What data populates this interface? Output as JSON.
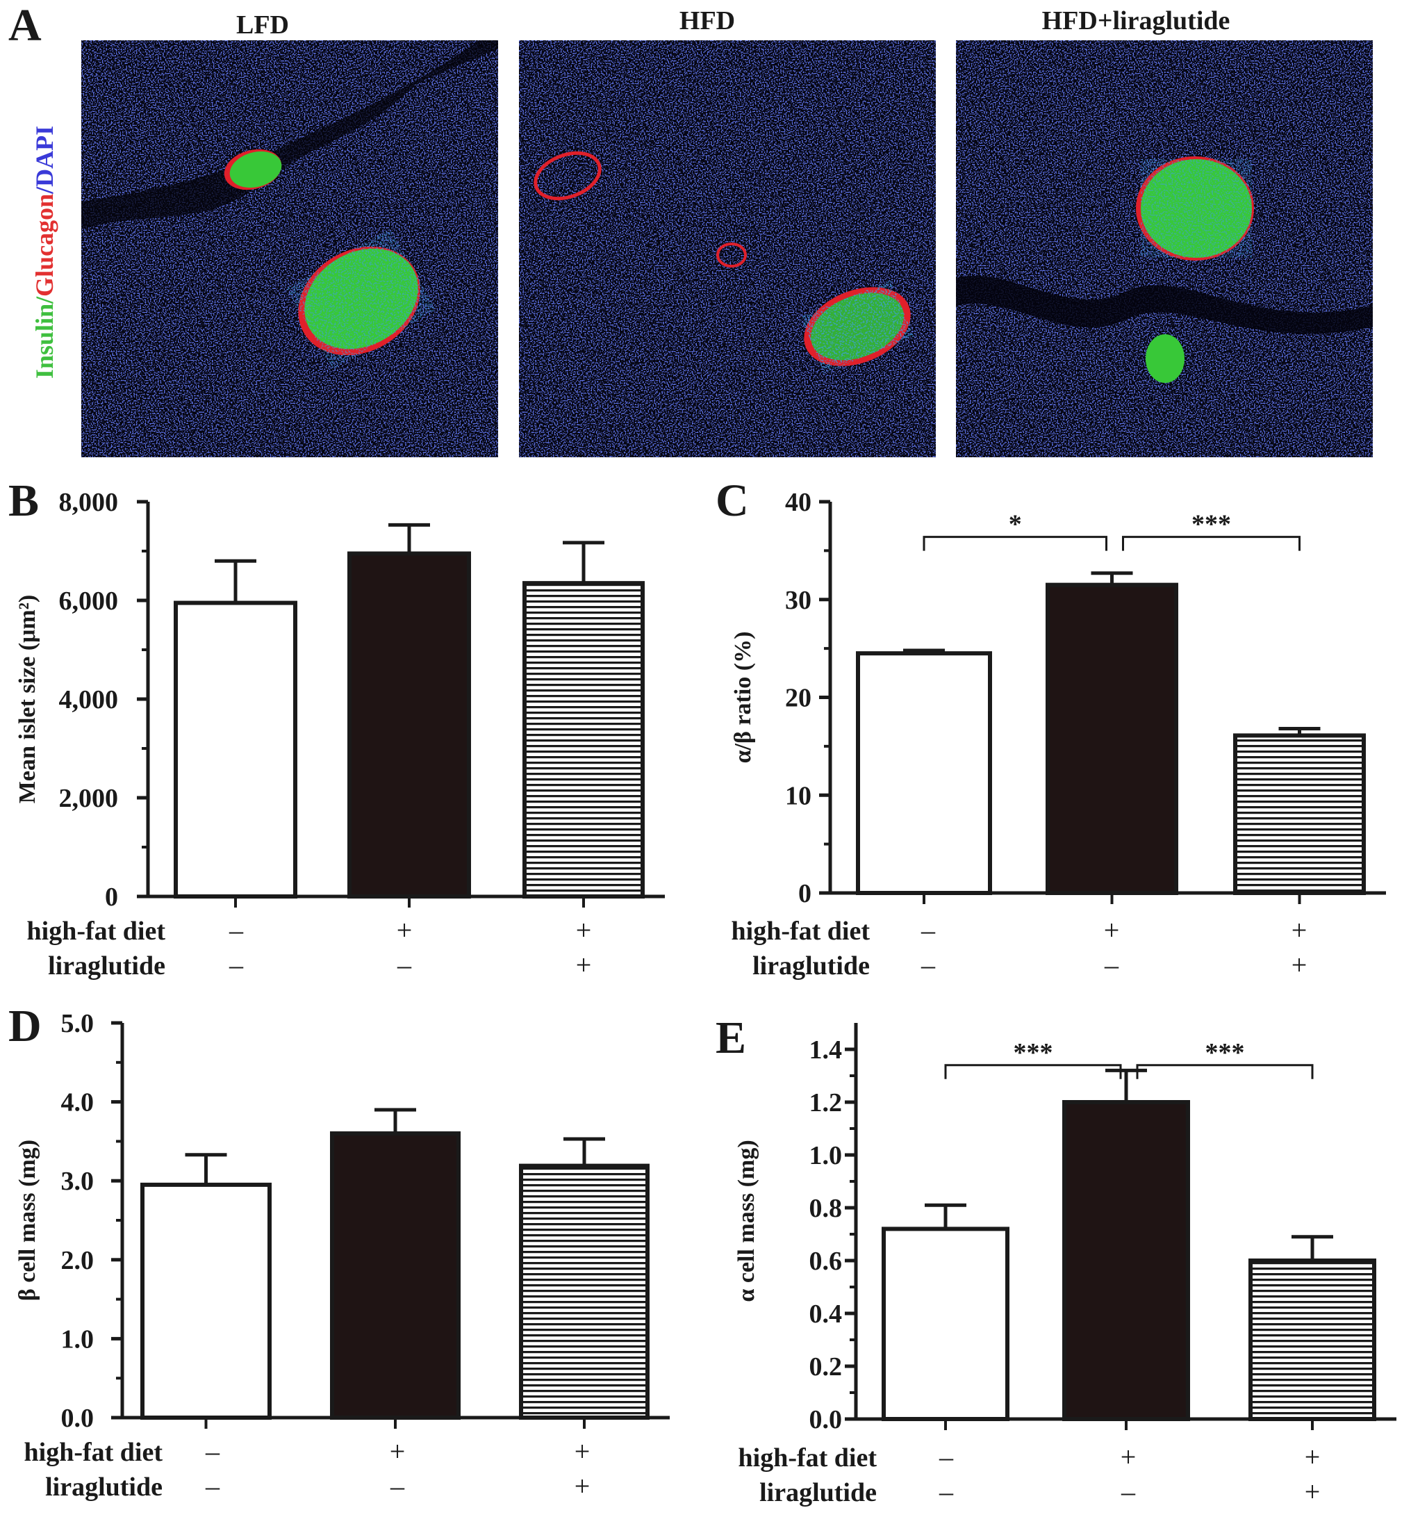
{
  "panel_a": {
    "letter": "A",
    "stain_label": [
      {
        "text": "Insulin",
        "color": "#3fbf3f"
      },
      {
        "text": "/",
        "color": "#3fbf3f"
      },
      {
        "text": "Glucagon",
        "color": "#e23030"
      },
      {
        "text": "/DAPI",
        "color": "#3a3ad8"
      }
    ],
    "images": [
      {
        "title": "LFD"
      },
      {
        "title": "HFD"
      },
      {
        "title": "HFD+liraglutide"
      }
    ],
    "colors": {
      "background": "#04040e",
      "dapi": "#2a3adf",
      "insulin": "#3ad23a",
      "glucagon": "#e0202a"
    }
  },
  "condition_rows": {
    "labels": [
      "high-fat diet",
      "liraglutide"
    ],
    "high_fat_diet": [
      "–",
      "+",
      "+"
    ],
    "liraglutide": [
      "–",
      "–",
      "+"
    ]
  },
  "chart_data": [
    {
      "panel": "B",
      "type": "bar",
      "ylabel": "Mean islet size (μm²)",
      "ylim": [
        0,
        8000
      ],
      "yticks": [
        0,
        2000,
        4000,
        6000,
        8000
      ],
      "ytick_labels": [
        "0",
        "2,000",
        "4,000",
        "6,000",
        "8,000"
      ],
      "groups": [
        {
          "fill": "white",
          "value": 5950,
          "error": 850
        },
        {
          "fill": "black",
          "value": 6950,
          "error": 580
        },
        {
          "fill": "striped",
          "value": 6350,
          "error": 820
        }
      ],
      "significance": []
    },
    {
      "panel": "C",
      "type": "bar",
      "ylabel": "α/β ratio (%)",
      "ylim": [
        0,
        40
      ],
      "yticks": [
        0,
        10,
        20,
        30,
        40
      ],
      "ytick_labels": [
        "0",
        "10",
        "20",
        "30",
        "40"
      ],
      "groups": [
        {
          "fill": "white",
          "value": 24.5,
          "error": 0.3
        },
        {
          "fill": "black",
          "value": 31.5,
          "error": 1.2
        },
        {
          "fill": "striped",
          "value": 16.1,
          "error": 0.7
        }
      ],
      "significance": [
        {
          "from": 0,
          "to": 1,
          "label": "*",
          "y": 36.4
        },
        {
          "from": 1,
          "to": 2,
          "label": "***",
          "y": 36.4
        }
      ]
    },
    {
      "panel": "D",
      "type": "bar",
      "ylabel": "β cell mass (mg)",
      "ylim": [
        0,
        5
      ],
      "yticks": [
        0,
        1,
        2,
        3,
        4,
        5
      ],
      "ytick_labels": [
        "0.0",
        "1.0",
        "2.0",
        "3.0",
        "4.0",
        "5.0"
      ],
      "groups": [
        {
          "fill": "white",
          "value": 2.95,
          "error": 0.38
        },
        {
          "fill": "black",
          "value": 3.6,
          "error": 0.3
        },
        {
          "fill": "striped",
          "value": 3.19,
          "error": 0.34
        }
      ],
      "significance": []
    },
    {
      "panel": "E",
      "type": "bar",
      "ylabel": "α cell mass (mg)",
      "ylim": [
        0,
        1.5
      ],
      "yticks": [
        0,
        0.2,
        0.4,
        0.6,
        0.8,
        1.0,
        1.2,
        1.4
      ],
      "ytick_labels": [
        "0.0",
        "0.2",
        "0.4",
        "0.6",
        "0.8",
        "1.0",
        "1.2",
        "1.4"
      ],
      "groups": [
        {
          "fill": "white",
          "value": 0.72,
          "error": 0.09
        },
        {
          "fill": "black",
          "value": 1.2,
          "error": 0.12
        },
        {
          "fill": "striped",
          "value": 0.6,
          "error": 0.09
        }
      ],
      "significance": [
        {
          "from": 0,
          "to": 1,
          "label": "***",
          "y": 1.34
        },
        {
          "from": 1,
          "to": 2,
          "label": "***",
          "y": 1.34
        }
      ]
    }
  ]
}
